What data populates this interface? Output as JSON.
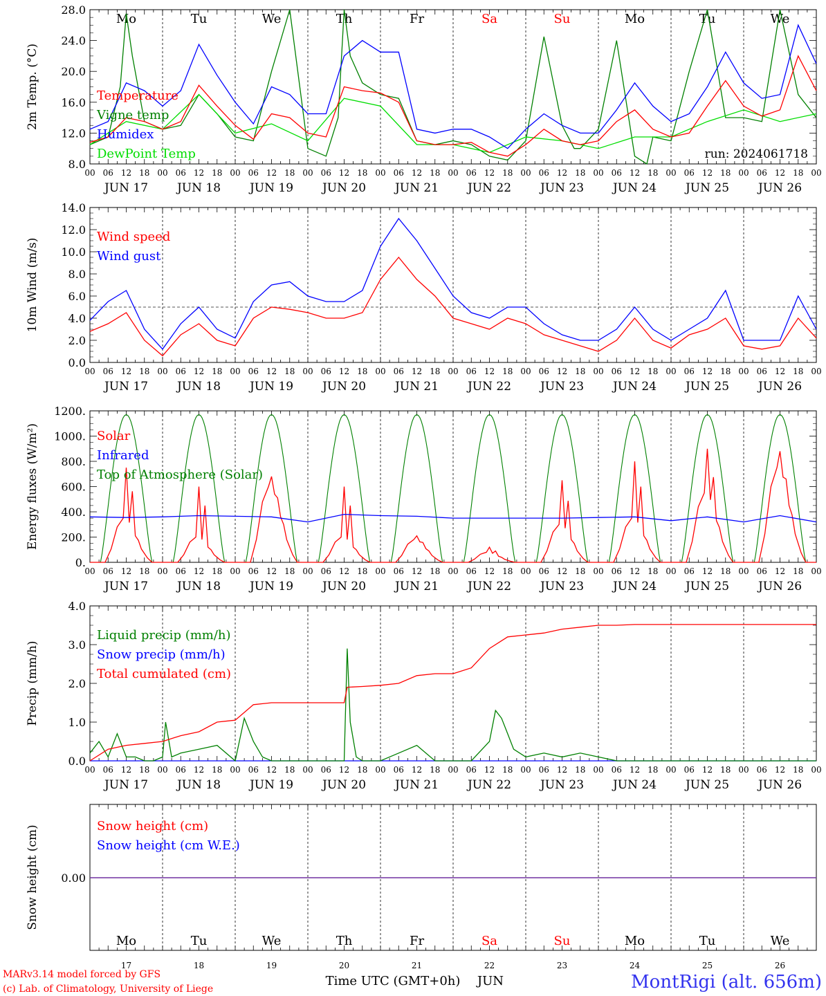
{
  "colors": {
    "red": "#ff0000",
    "green": "#008000",
    "blue": "#0000ff",
    "lightgreen": "#00dd00",
    "purple": "#7030a0",
    "title_blue": "#3333ee"
  },
  "days": [
    {
      "dow": "Mo",
      "date": "JUN 17",
      "num": "17",
      "weekend": false
    },
    {
      "dow": "Tu",
      "date": "JUN 18",
      "num": "18",
      "weekend": false
    },
    {
      "dow": "We",
      "date": "JUN 19",
      "num": "19",
      "weekend": false
    },
    {
      "dow": "Th",
      "date": "JUN 20",
      "num": "20",
      "weekend": false
    },
    {
      "dow": "Fr",
      "date": "JUN 21",
      "num": "21",
      "weekend": false
    },
    {
      "dow": "Sa",
      "date": "JUN 22",
      "num": "22",
      "weekend": true
    },
    {
      "dow": "Su",
      "date": "JUN 23",
      "num": "23",
      "weekend": true
    },
    {
      "dow": "Mo",
      "date": "JUN 24",
      "num": "24",
      "weekend": false
    },
    {
      "dow": "Tu",
      "date": "JUN 25",
      "num": "25",
      "weekend": false
    },
    {
      "dow": "We",
      "date": "JUN 26",
      "num": "26",
      "weekend": false
    }
  ],
  "hour_labels": [
    "00",
    "06",
    "12",
    "18"
  ],
  "footer": {
    "model": "MARv3.14 model forced by GFS",
    "lab": "(c) Lab. of Climatology, University of Liege",
    "xlabel": "Time UTC (GMT+0h)",
    "month": "JUN",
    "station": "MontRigi (alt. 656m)"
  },
  "chart_data": [
    {
      "type": "line",
      "ylabel": "2m Temp. (°C)",
      "ylim": [
        8,
        28
      ],
      "yticks": [
        "8.0",
        "12.0",
        "16.0",
        "20.0",
        "24.0",
        "28.0"
      ],
      "annotation": "run: 2024061718",
      "x_unit": "hours since JUN 17 00 UTC",
      "series": [
        {
          "name": "Temperature",
          "color": "red",
          "x": [
            0,
            6,
            12,
            18,
            24,
            30,
            36,
            42,
            48,
            54,
            60,
            66,
            72,
            78,
            84,
            90,
            96,
            102,
            108,
            114,
            120,
            126,
            132,
            138,
            144,
            150,
            156,
            162,
            168,
            174,
            180,
            186,
            192,
            198,
            204,
            210,
            216,
            222,
            228,
            234,
            240
          ],
          "y": [
            10.8,
            11.5,
            14.0,
            13.5,
            12.5,
            13.5,
            18.2,
            15.5,
            13.0,
            11.2,
            14.5,
            14.0,
            12.0,
            11.5,
            18.0,
            17.5,
            17.2,
            16.0,
            11.0,
            10.5,
            10.5,
            10.8,
            9.5,
            9.0,
            10.5,
            12.5,
            11.0,
            10.5,
            11.0,
            13.5,
            15.0,
            12.5,
            11.5,
            12.0,
            15.5,
            18.8,
            15.5,
            14.2,
            15.0,
            22.0,
            17.5
          ]
        },
        {
          "name": "Vigne temp",
          "color": "green",
          "x": [
            0,
            6,
            10,
            12,
            14,
            18,
            24,
            30,
            36,
            42,
            48,
            54,
            60,
            66,
            72,
            78,
            82,
            84,
            86,
            90,
            96,
            102,
            108,
            114,
            120,
            126,
            132,
            138,
            144,
            150,
            156,
            160,
            162,
            168,
            174,
            180,
            184,
            186,
            192,
            198,
            204,
            210,
            216,
            222,
            228,
            234,
            240
          ],
          "y": [
            10.5,
            11.5,
            18.0,
            27.5,
            22.0,
            13.5,
            12.5,
            13.0,
            17.0,
            14.5,
            11.5,
            11.0,
            20.0,
            28.0,
            10.0,
            9.0,
            14.0,
            28.0,
            22.0,
            18.5,
            17.0,
            16.5,
            11.0,
            10.5,
            11.0,
            10.5,
            9.0,
            8.5,
            11.0,
            24.5,
            13.0,
            10.0,
            10.0,
            12.5,
            24.0,
            9.0,
            8.0,
            11.5,
            11.0,
            20.0,
            28.0,
            14.0,
            14.0,
            13.5,
            28.0,
            17.0,
            14.0
          ]
        },
        {
          "name": "Humidex",
          "color": "blue",
          "x": [
            0,
            6,
            12,
            18,
            24,
            30,
            36,
            42,
            48,
            54,
            60,
            66,
            72,
            78,
            84,
            90,
            96,
            102,
            108,
            114,
            120,
            126,
            132,
            138,
            144,
            150,
            156,
            162,
            168,
            174,
            180,
            186,
            192,
            198,
            204,
            210,
            216,
            222,
            228,
            234,
            240
          ],
          "y": [
            12.5,
            13.5,
            18.5,
            17.5,
            15.5,
            17.5,
            23.5,
            19.5,
            16.0,
            13.2,
            18.0,
            17.0,
            14.5,
            14.5,
            22.0,
            24.0,
            22.5,
            22.5,
            12.5,
            12.0,
            12.5,
            12.5,
            11.5,
            10.0,
            12.5,
            14.5,
            13.0,
            12.0,
            12.0,
            15.0,
            18.5,
            15.5,
            13.5,
            14.5,
            18.0,
            22.5,
            18.5,
            16.5,
            17.0,
            26.0,
            21.0
          ]
        },
        {
          "name": "DewPoint Temp",
          "color": "lightgreen",
          "x": [
            0,
            12,
            24,
            36,
            48,
            60,
            72,
            84,
            96,
            108,
            120,
            132,
            144,
            156,
            168,
            180,
            192,
            204,
            216,
            228,
            240
          ],
          "y": [
            10.5,
            13.5,
            12.5,
            17.0,
            12.0,
            13.2,
            11.0,
            16.5,
            15.5,
            10.5,
            10.5,
            9.5,
            11.5,
            11.0,
            10.0,
            11.5,
            11.5,
            13.5,
            15.0,
            13.5,
            14.5
          ]
        }
      ]
    },
    {
      "type": "line",
      "ylabel": "10m Wind (m/s)",
      "ylim": [
        0,
        14
      ],
      "yticks": [
        "0.0",
        "2.0",
        "4.0",
        "6.0",
        "8.0",
        "10.0",
        "12.0",
        "14.0"
      ],
      "reference_line": 5,
      "x_unit": "hours since JUN 17 00 UTC",
      "series": [
        {
          "name": "Wind speed",
          "color": "red",
          "x": [
            0,
            6,
            12,
            18,
            24,
            30,
            36,
            42,
            48,
            54,
            60,
            66,
            72,
            78,
            84,
            90,
            96,
            102,
            108,
            114,
            120,
            126,
            132,
            138,
            144,
            150,
            156,
            162,
            168,
            174,
            180,
            186,
            192,
            198,
            204,
            210,
            216,
            222,
            228,
            234,
            240
          ],
          "y": [
            2.8,
            3.5,
            4.5,
            2.0,
            0.6,
            2.5,
            3.5,
            2.0,
            1.5,
            4.0,
            5.0,
            4.8,
            4.5,
            4.0,
            4.0,
            4.5,
            7.5,
            9.5,
            7.5,
            6.0,
            4.0,
            3.5,
            3.0,
            4.0,
            3.5,
            2.5,
            2.0,
            1.5,
            1.0,
            2.0,
            4.0,
            2.0,
            1.3,
            2.5,
            3.0,
            4.0,
            1.5,
            1.2,
            1.5,
            4.0,
            2.2
          ]
        },
        {
          "name": "Wind gust",
          "color": "blue",
          "x": [
            0,
            6,
            12,
            18,
            24,
            30,
            36,
            42,
            48,
            54,
            60,
            66,
            72,
            78,
            84,
            90,
            96,
            102,
            108,
            114,
            120,
            126,
            132,
            138,
            144,
            150,
            156,
            162,
            168,
            174,
            180,
            186,
            192,
            198,
            204,
            210,
            216,
            222,
            228,
            234,
            240
          ],
          "y": [
            3.8,
            5.5,
            6.5,
            3.0,
            1.2,
            3.5,
            5.0,
            3.0,
            2.2,
            5.5,
            7.0,
            7.3,
            6.0,
            5.5,
            5.5,
            6.5,
            10.5,
            13.0,
            11.0,
            8.5,
            6.0,
            4.5,
            4.0,
            5.0,
            5.0,
            3.5,
            2.5,
            2.0,
            2.0,
            3.0,
            5.0,
            3.0,
            2.0,
            3.0,
            4.0,
            6.5,
            2.0,
            2.0,
            2.0,
            6.0,
            3.0
          ]
        }
      ]
    },
    {
      "type": "line",
      "ylabel": "Energy fluxes (W/m²)",
      "ylim": [
        0,
        1200
      ],
      "yticks": [
        "0.",
        "200.",
        "400.",
        "600.",
        "800.",
        "1000.",
        "1200."
      ],
      "x_unit": "hours since JUN 17 00 UTC",
      "series": [
        {
          "name": "Solar",
          "color": "red",
          "daily_peak": [
            750,
            600,
            680,
            600,
            210,
            120,
            650,
            800,
            900,
            880
          ],
          "daily_typical": [
            350,
            200,
            600,
            200,
            180,
            80,
            300,
            350,
            550,
            750
          ]
        },
        {
          "name": "Infrared",
          "color": "blue",
          "x": [
            0,
            12,
            24,
            36,
            48,
            60,
            72,
            84,
            96,
            108,
            120,
            132,
            144,
            156,
            168,
            180,
            192,
            204,
            216,
            228,
            240
          ],
          "y": [
            360,
            355,
            360,
            370,
            365,
            360,
            320,
            380,
            370,
            365,
            350,
            350,
            350,
            350,
            355,
            360,
            330,
            360,
            320,
            370,
            320
          ]
        },
        {
          "name": "Top of Atmosphere (Solar)",
          "color": "green",
          "daily_peak": [
            1170,
            1170,
            1170,
            1170,
            1170,
            1170,
            1170,
            1170,
            1170,
            1170
          ],
          "daylight_hours": [
            3.5,
            20.5
          ]
        }
      ]
    },
    {
      "type": "line",
      "ylabel": "Precip (mm/h)",
      "ylim": [
        0,
        4
      ],
      "yticks": [
        "0.0",
        "1.0",
        "2.0",
        "3.0",
        "4.0"
      ],
      "x_unit": "hours since JUN 17 00 UTC",
      "series": [
        {
          "name": "Liquid precip (mm/h)",
          "color": "green",
          "x": [
            0,
            3,
            6,
            9,
            12,
            15,
            18,
            21,
            24,
            25,
            27,
            30,
            36,
            42,
            48,
            51,
            54,
            57,
            60,
            66,
            72,
            78,
            84,
            85,
            86,
            88,
            90,
            96,
            102,
            108,
            114,
            120,
            126,
            132,
            134,
            136,
            138,
            140,
            144,
            150,
            156,
            162,
            168,
            174,
            180,
            186,
            192,
            198,
            204,
            210,
            216,
            222,
            228,
            234,
            240
          ],
          "y": [
            0.2,
            0.5,
            0.1,
            0.7,
            0.1,
            0.1,
            0.0,
            0.0,
            0.1,
            1.0,
            0.1,
            0.2,
            0.3,
            0.4,
            0.0,
            1.1,
            0.5,
            0.1,
            0.0,
            0.0,
            0.0,
            0.0,
            0.0,
            2.9,
            1.0,
            0.1,
            0.0,
            0.0,
            0.2,
            0.4,
            0.0,
            0.0,
            0.0,
            0.5,
            1.3,
            1.1,
            0.7,
            0.3,
            0.1,
            0.2,
            0.1,
            0.2,
            0.1,
            0.0,
            0.0,
            0.0,
            0.0,
            0.0,
            0.0,
            0.0,
            0.0,
            0.0,
            0.0,
            0.0,
            0.0
          ]
        },
        {
          "name": "Snow precip (mm/h)",
          "color": "blue",
          "x": [
            0,
            240
          ],
          "y": [
            0,
            0
          ]
        },
        {
          "name": "Total cumulated (cm)",
          "color": "red",
          "x": [
            0,
            6,
            12,
            18,
            24,
            30,
            36,
            42,
            48,
            54,
            60,
            66,
            72,
            78,
            84,
            85,
            90,
            96,
            102,
            108,
            114,
            120,
            126,
            132,
            138,
            144,
            150,
            156,
            162,
            168,
            174,
            180,
            186,
            192,
            198,
            204,
            210,
            216,
            222,
            228,
            234,
            240
          ],
          "y": [
            0.0,
            0.3,
            0.4,
            0.45,
            0.5,
            0.65,
            0.75,
            1.0,
            1.05,
            1.45,
            1.5,
            1.5,
            1.5,
            1.5,
            1.5,
            1.9,
            1.92,
            1.95,
            2.0,
            2.2,
            2.25,
            2.25,
            2.4,
            2.9,
            3.2,
            3.25,
            3.3,
            3.4,
            3.45,
            3.5,
            3.5,
            3.52,
            3.52,
            3.52,
            3.52,
            3.52,
            3.52,
            3.52,
            3.52,
            3.52,
            3.52,
            3.52
          ]
        }
      ]
    },
    {
      "type": "line",
      "ylabel": "Snow height (cm)",
      "yticks": [
        "0.00"
      ],
      "x_unit": "hours since JUN 17 00 UTC",
      "series": [
        {
          "name": "Snow height (cm)",
          "color": "red",
          "x": [
            0,
            240
          ],
          "y": [
            0,
            0
          ]
        },
        {
          "name": "Snow height (cm W.E.)",
          "color": "blue",
          "x": [
            0,
            240
          ],
          "y": [
            0,
            0
          ]
        }
      ]
    }
  ]
}
